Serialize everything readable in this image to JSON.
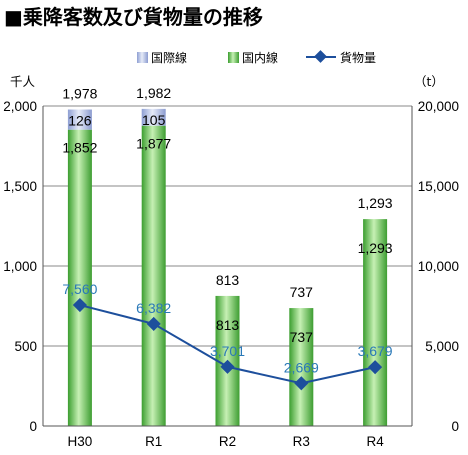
{
  "title": "■乗降客数及び貨物量の推移",
  "chart_data": {
    "type": "bar+line",
    "categories": [
      "H30",
      "R1",
      "R2",
      "R3",
      "R4"
    ],
    "left_axis": {
      "unit": "千人",
      "ylim": [
        0,
        2000
      ],
      "ticks": [
        "0",
        "500",
        "1,000",
        "1,500",
        "2,000"
      ],
      "tick_values": [
        0,
        500,
        1000,
        1500,
        2000
      ]
    },
    "right_axis": {
      "unit": "（t）",
      "ylim": [
        0,
        20000
      ],
      "ticks": [
        "0",
        "5,000",
        "10,000",
        "15,000",
        "20,000"
      ],
      "tick_values": [
        0,
        5000,
        10000,
        15000,
        20000
      ]
    },
    "series": [
      {
        "name": "国際線",
        "kind": "bar-stacked-top",
        "axis": "left",
        "color": "#a9b6de",
        "values": [
          126,
          105,
          0,
          0,
          0
        ],
        "labels": [
          "126",
          "105",
          "",
          "",
          ""
        ]
      },
      {
        "name": "国内線",
        "kind": "bar-stacked-bottom",
        "axis": "left",
        "color": "#5cbd46",
        "values": [
          1852,
          1877,
          813,
          737,
          1293
        ],
        "labels": [
          "1,852",
          "1,877",
          "813",
          "737",
          "1,293"
        ]
      },
      {
        "name": "貨物量",
        "kind": "line",
        "axis": "right",
        "color": "#1d4f9c",
        "values": [
          7560,
          6382,
          3701,
          2669,
          3679
        ],
        "labels": [
          "7,560",
          "6,382",
          "3,701",
          "2,669",
          "3,679"
        ]
      }
    ],
    "totals": {
      "values": [
        1978,
        1982,
        813,
        737,
        1293
      ],
      "labels": [
        "1,978",
        "1,982",
        "813",
        "737",
        "1,293"
      ]
    },
    "legend": {
      "placement": "top",
      "entries": [
        "国際線",
        "国内線",
        "貨物量"
      ]
    },
    "grid": true
  }
}
